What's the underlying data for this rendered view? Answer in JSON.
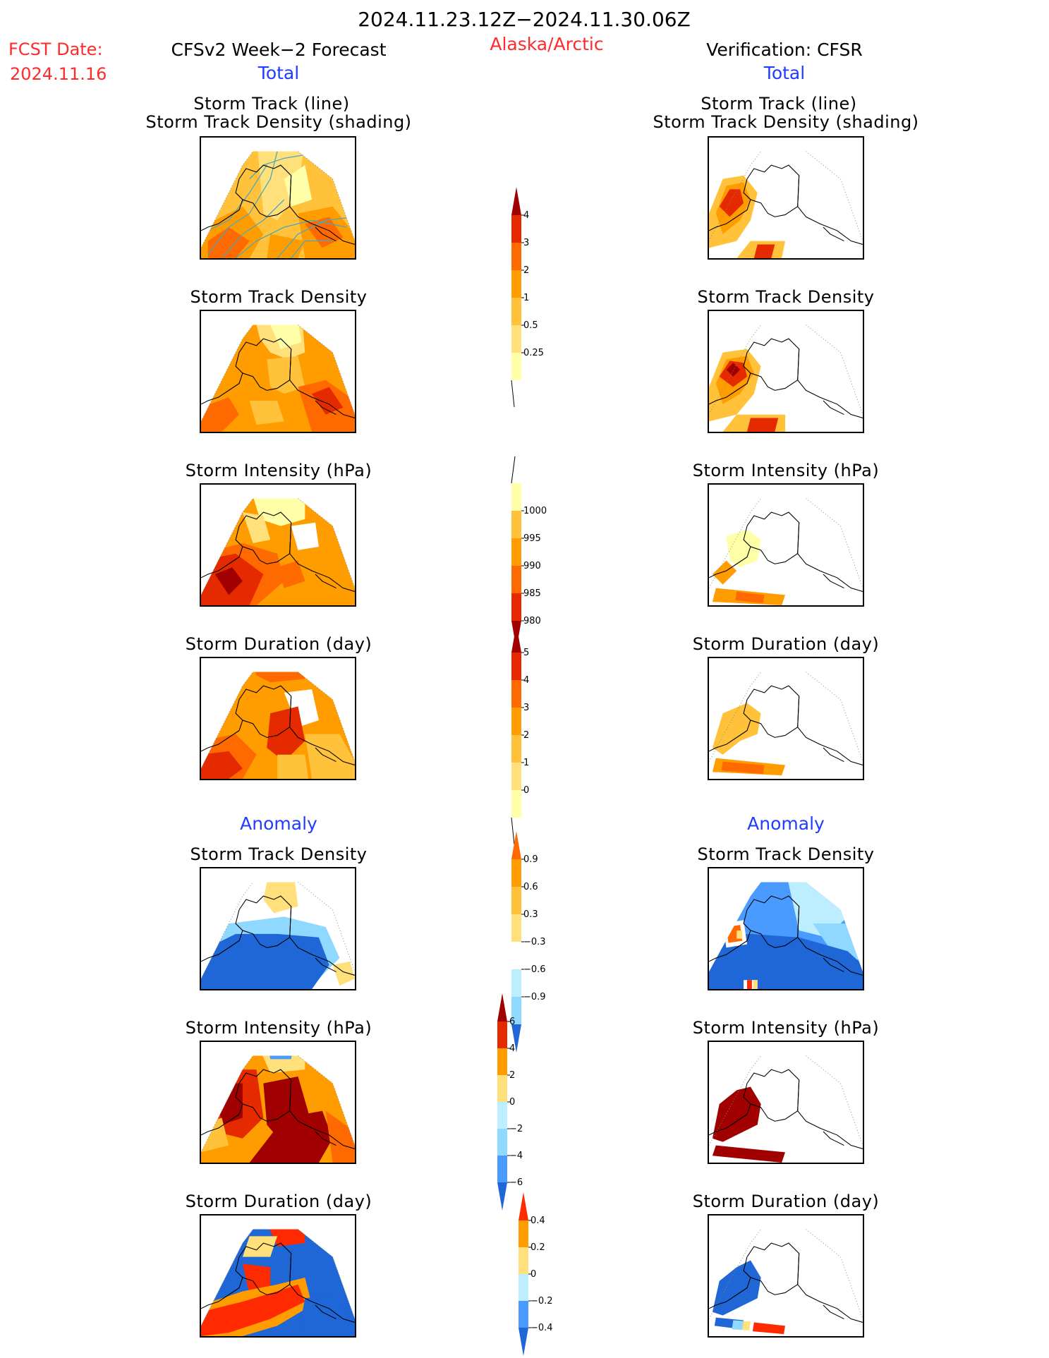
{
  "header": {
    "date_range": "2024.11.23.12Z−2024.11.30.06Z",
    "region": "Alaska/Arctic",
    "fcst_label": "FCST Date:",
    "fcst_date": "2024.11.16",
    "left_title": "CFSv2 Week−2 Forecast",
    "right_title": "Verification: CFSR",
    "left_sub": "Total",
    "right_sub": "Total"
  },
  "sections": {
    "anomaly_left": "Anomaly",
    "anomaly_right": "Anomaly"
  },
  "panel_titles": {
    "track_line": "Storm Track (line)",
    "track_shading": "Storm Track Density (shading)",
    "density": "Storm Track Density",
    "intensity": "Storm Intensity (hPa)",
    "duration": "Storm Duration (day)"
  },
  "colors": {
    "lightyellow": "#ffffa8",
    "yellow": "#ffe07a",
    "lightorange": "#ffc23a",
    "orange": "#ff9c00",
    "darkorange": "#ff6a00",
    "red": "#e52a00",
    "darkred": "#a00000",
    "lightblue": "#bdeeff",
    "skyblue": "#8fd8ff",
    "blue": "#4a9bff",
    "darkblue": "#1f66d6",
    "track": "#4aa8c0"
  },
  "chart_data": [
    {
      "type": "heatmap",
      "name": "colorbar-storm-track-density",
      "levels": [
        "4",
        "3",
        "2",
        "1",
        "0.5",
        "0.25"
      ],
      "colors": [
        "#a00000",
        "#e52a00",
        "#ff6a00",
        "#ff9c00",
        "#ffc23a",
        "#ffe07a",
        "#ffffa8"
      ]
    },
    {
      "type": "heatmap",
      "name": "colorbar-storm-intensity",
      "levels": [
        "1000",
        "995",
        "990",
        "985",
        "980"
      ],
      "colors": [
        "#ffffa8",
        "#ffc23a",
        "#ff9c00",
        "#ff6a00",
        "#e52a00",
        "#a00000"
      ]
    },
    {
      "type": "heatmap",
      "name": "colorbar-storm-duration",
      "levels": [
        "5",
        "4",
        "3",
        "2",
        "1",
        "0"
      ],
      "colors": [
        "#a00000",
        "#e52a00",
        "#ff6a00",
        "#ff9c00",
        "#ffc23a",
        "#ffe07a",
        "#ffffa8"
      ]
    },
    {
      "type": "heatmap",
      "name": "colorbar-anomaly-density",
      "levels": [
        "0.9",
        "0.6",
        "0.3",
        "−0.3",
        "−0.6",
        "−0.9"
      ],
      "colors": [
        "#ff6a00",
        "#ff9c00",
        "#ffc23a",
        "#ffe07a",
        "#ffffff",
        "#bdeeff",
        "#8fd8ff",
        "#1f66d6"
      ]
    },
    {
      "type": "heatmap",
      "name": "colorbar-anomaly-intensity",
      "levels": [
        "6",
        "4",
        "2",
        "0",
        "−2",
        "−4",
        "−6"
      ],
      "colors": [
        "#a00000",
        "#e52a00",
        "#ff9c00",
        "#ffe07a",
        "#bdeeff",
        "#8fd8ff",
        "#4a9bff",
        "#1f66d6"
      ]
    },
    {
      "type": "heatmap",
      "name": "colorbar-anomaly-duration",
      "levels": [
        "0.4",
        "0.2",
        "0",
        "−0.2",
        "−0.4"
      ],
      "colors": [
        "#ff2a00",
        "#ff9c00",
        "#ffe07a",
        "#bdeeff",
        "#4a9bff",
        "#1f66d6"
      ]
    }
  ]
}
